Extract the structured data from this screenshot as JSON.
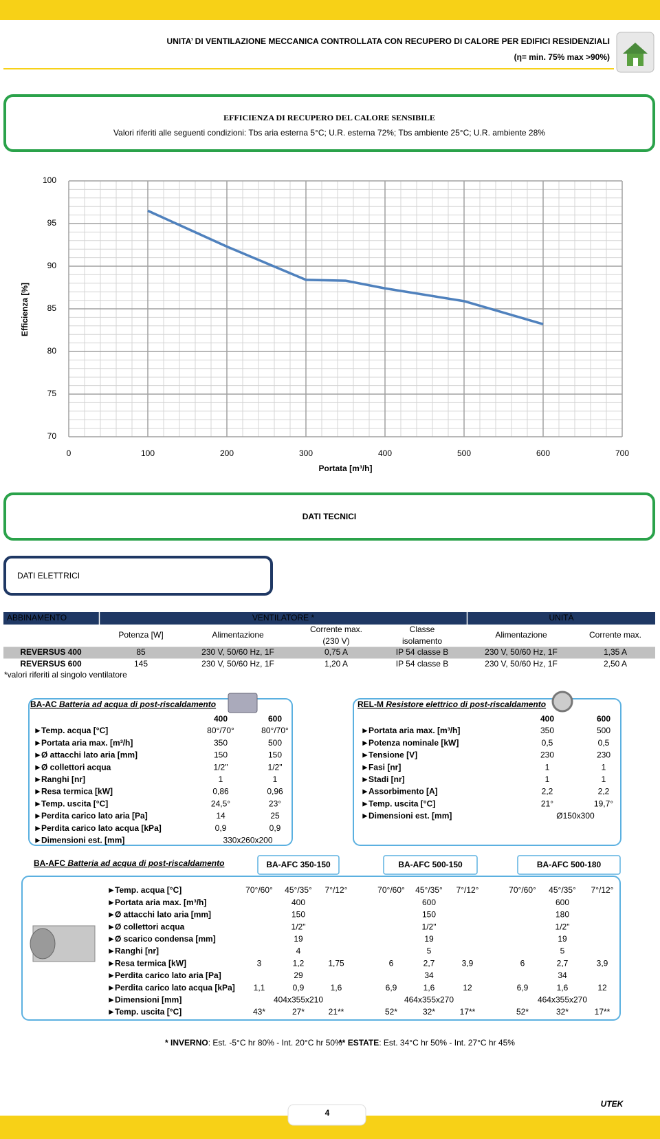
{
  "header": {
    "title": "UNITA’ DI VENTILAZIONE MECCANICA CONTROLLATA CON RECUPERO DI CALORE PER EDIFICI RESIDENZIALI",
    "subtitle": "(η= min. 75% max >90%)"
  },
  "section": {
    "title": "EFFICIENZA DI RECUPERO DEL CALORE SENSIBILE",
    "subtitle": "Valori riferiti alle seguenti condizioni: Tbs aria esterna 5°C; U.R. esterna 72%; Tbs ambiente 25°C; U.R. ambiente 28%"
  },
  "chart_data": {
    "type": "line",
    "x": [
      100,
      200,
      300,
      350,
      400,
      500,
      600
    ],
    "values": [
      96.5,
      92.3,
      88.4,
      88.3,
      87.4,
      85.9,
      83.2
    ],
    "color": "#4f81bd",
    "xlabel": "Portata [m³/h]",
    "ylabel": "Efficienza [%]",
    "xlim": [
      0,
      700
    ],
    "xticks": [
      0,
      100,
      200,
      300,
      400,
      500,
      600,
      700
    ],
    "ylim": [
      70,
      100
    ],
    "yticks": [
      70,
      75,
      80,
      85,
      90,
      95,
      100
    ],
    "grid": true,
    "minor_grid": {
      "x": 20,
      "y": 1
    }
  },
  "tech_title": "DATI TECNICI",
  "elec_title": "DATI ELETTRICI",
  "table": {
    "groups": [
      "ABBINAMENTO",
      "VENTILATORE *",
      "UNITÀ"
    ],
    "columns": [
      [
        "Potenza [W]"
      ],
      [
        "Alimentazione"
      ],
      [
        "Corrente max.",
        "(230 V)"
      ],
      [
        "Classe",
        "isolamento"
      ],
      [
        "Alimentazione"
      ],
      [
        "Corrente max."
      ]
    ],
    "rows": [
      [
        "REVERSUS 400",
        "85",
        "230 V, 50/60 Hz, 1F",
        "0,75 A",
        "IP 54 classe B",
        "230 V, 50/60 Hz, 1F",
        "1,35 A"
      ],
      [
        "REVERSUS 600",
        "145",
        "230 V, 50/60 Hz, 1F",
        "1,20 A",
        "IP 54 classe B",
        "230 V, 50/60 Hz, 1F",
        "2,50 A"
      ]
    ],
    "note": "*valori riferiti al singolo ventilatore"
  },
  "ba_ac": {
    "code": "BA-AC",
    "title": "Batteria ad acqua di post-riscaldamento",
    "columns": [
      "400",
      "600"
    ],
    "rows": [
      {
        "label": "Temp. acqua [°C]",
        "values": [
          "80°/70°",
          "80°/70°"
        ]
      },
      {
        "label": "Portata aria max. [m³/h]",
        "values": [
          "350",
          "500"
        ]
      },
      {
        "label": "Ø attacchi lato aria [mm]",
        "values": [
          "150",
          "150"
        ]
      },
      {
        "label": "Ø collettori acqua",
        "values": [
          "1/2\"",
          "1/2\""
        ]
      },
      {
        "label": "Ranghi [nr]",
        "values": [
          "1",
          "1"
        ]
      },
      {
        "label": "Resa termica [kW]",
        "values": [
          "0,86",
          "0,96"
        ]
      },
      {
        "label": "Temp. uscita [°C]",
        "values": [
          "24,5°",
          "23°"
        ]
      },
      {
        "label": "Perdita carico lato aria [Pa]",
        "values": [
          "14",
          "25"
        ]
      },
      {
        "label": "Perdita carico lato acqua [kPa]",
        "values": [
          "0,9",
          "0,9"
        ]
      },
      {
        "label": "Dimensioni est. [mm]",
        "values": [
          "330x260x200"
        ]
      }
    ]
  },
  "rel_m": {
    "code": "REL-M",
    "title": "Resistore elettrico di post-riscaldamento",
    "columns": [
      "400",
      "600"
    ],
    "rows": [
      {
        "label": "Portata aria max. [m³/h]",
        "values": [
          "350",
          "500"
        ]
      },
      {
        "label": "Potenza nominale [kW]",
        "values": [
          "0,5",
          "0,5"
        ]
      },
      {
        "label": "Tensione [V]",
        "values": [
          "230",
          "230"
        ]
      },
      {
        "label": "Fasi [nr]",
        "values": [
          "1",
          "1"
        ]
      },
      {
        "label": "Stadi [nr]",
        "values": [
          "1",
          "1"
        ]
      },
      {
        "label": "Assorbimento [A]",
        "values": [
          "2,2",
          "2,2"
        ]
      },
      {
        "label": "Temp. uscita [°C]",
        "values": [
          "21°",
          "19,7°"
        ]
      },
      {
        "label": "Dimensioni est. [mm]",
        "values": [
          "Ø150x300"
        ]
      }
    ]
  },
  "ba_afc": {
    "code": "BA-AFC",
    "title": "Batteria ad acqua di post-riscaldamento",
    "models": [
      "BA-AFC 350-150",
      "BA-AFC 500-150",
      "BA-AFC 500-180"
    ],
    "rows": [
      {
        "label": "Temp. acqua [°C]",
        "values": [
          "70°/60°",
          "45°/35°",
          "7°/12°",
          "70°/60°",
          "45°/35°",
          "7°/12°",
          "70°/60°",
          "45°/35°",
          "7°/12°"
        ]
      },
      {
        "label": "Portata aria max. [m³/h]",
        "values": [
          "400",
          "600",
          "600"
        ]
      },
      {
        "label": "Ø attacchi lato aria [mm]",
        "values": [
          "150",
          "150",
          "180"
        ]
      },
      {
        "label": "Ø collettori acqua",
        "values": [
          "1/2\"",
          "1/2\"",
          "1/2\""
        ]
      },
      {
        "label": "Ø scarico condensa [mm]",
        "values": [
          "19",
          "19",
          "19"
        ]
      },
      {
        "label": "Ranghi [nr]",
        "values": [
          "4",
          "5",
          "5"
        ]
      },
      {
        "label": "Resa termica [kW]",
        "values": [
          "3",
          "1,2",
          "1,75",
          "6",
          "2,7",
          "3,9",
          "6",
          "2,7",
          "3,9"
        ]
      },
      {
        "label": "Perdita carico lato aria [Pa]",
        "values": [
          "29",
          "34",
          "34"
        ]
      },
      {
        "label": "Perdita carico lato acqua [kPa]",
        "values": [
          "1,1",
          "0,9",
          "1,6",
          "6,9",
          "1,6",
          "12",
          "6,9",
          "1,6",
          "12"
        ]
      },
      {
        "label": "Dimensioni [mm]",
        "values": [
          "404x355x210",
          "464x355x270",
          "464x355x270"
        ]
      },
      {
        "label": "Temp. uscita [°C]",
        "values": [
          "43*",
          "27*",
          "21**",
          "52*",
          "32*",
          "17**",
          "52*",
          "32*",
          "17**"
        ]
      }
    ]
  },
  "footnotes": [
    {
      "mark": "*",
      "label": "INVERNO",
      "text": ": Est. -5°C hr 80% - Int. 20°C hr 50%"
    },
    {
      "mark": "**",
      "label": "ESTATE",
      "text": ": Est. 34°C hr 50% - Int. 27°C hr 45%"
    }
  ],
  "page_number": "4",
  "logo": "UTEK"
}
